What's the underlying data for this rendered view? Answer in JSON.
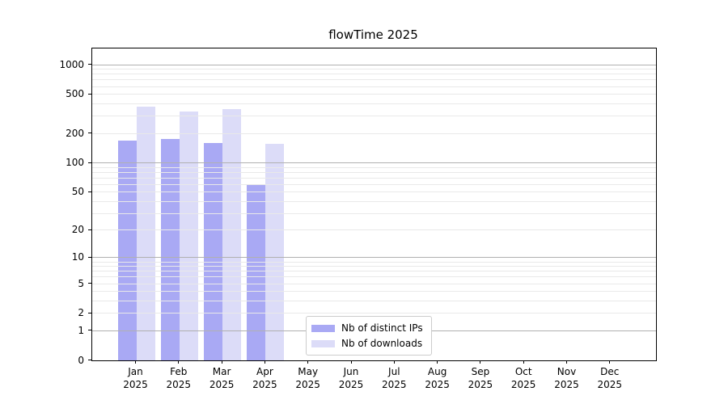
{
  "title": "flowTime 2025",
  "chart_data": {
    "type": "bar",
    "title": "flowTime 2025",
    "months": [
      "Jan",
      "Feb",
      "Mar",
      "Apr",
      "May",
      "Jun",
      "Jul",
      "Aug",
      "Sep",
      "Oct",
      "Nov",
      "Dec"
    ],
    "year_label": "2025",
    "series": [
      {
        "name": "Nb of distinct IPs",
        "color": "#a9a9f4",
        "values": [
          170,
          175,
          160,
          60,
          0,
          0,
          0,
          0,
          0,
          0,
          0,
          0
        ]
      },
      {
        "name": "Nb of downloads",
        "color": "#dcdcf8",
        "values": [
          375,
          335,
          355,
          156,
          0,
          0,
          0,
          0,
          0,
          0,
          0,
          0
        ]
      }
    ],
    "yscale": "symlog-log1p",
    "ylim": [
      0,
      1460
    ],
    "yticks": [
      0,
      1,
      2,
      5,
      10,
      20,
      50,
      100,
      200,
      500,
      1000
    ],
    "grid": {
      "major_color": "#b0b0b0",
      "minor_color": "#e9e9e9",
      "orientation": "horizontal",
      "above_bars": true
    },
    "legend": {
      "position": "lower-left-inside"
    }
  },
  "colors": {
    "background": "#ffffff",
    "spine": "#000000",
    "bar_distinct_ips": "#a9a9f4",
    "bar_downloads": "#dcdcf8"
  }
}
